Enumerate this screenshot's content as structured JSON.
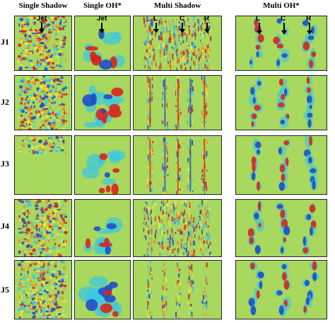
{
  "columns": [
    "Single Shadow",
    "Single OH*",
    "Multi Shadow",
    "Multi OH*"
  ],
  "rows": [
    "J1",
    "J2",
    "J3",
    "J4",
    "J5"
  ],
  "markers": {
    "single_shadow": "Jet",
    "single_oh": "Jet",
    "multi_shadow": [
      "L",
      "C",
      "R"
    ],
    "multi_oh": [
      "L",
      "C",
      "R"
    ]
  },
  "colors": {
    "background": "#a8d85e",
    "red": "#d7261e",
    "blue": "#1f4fc8",
    "cyan": "#38c7e6",
    "yellow": "#f2e43a",
    "orange": "#f08a2a"
  }
}
